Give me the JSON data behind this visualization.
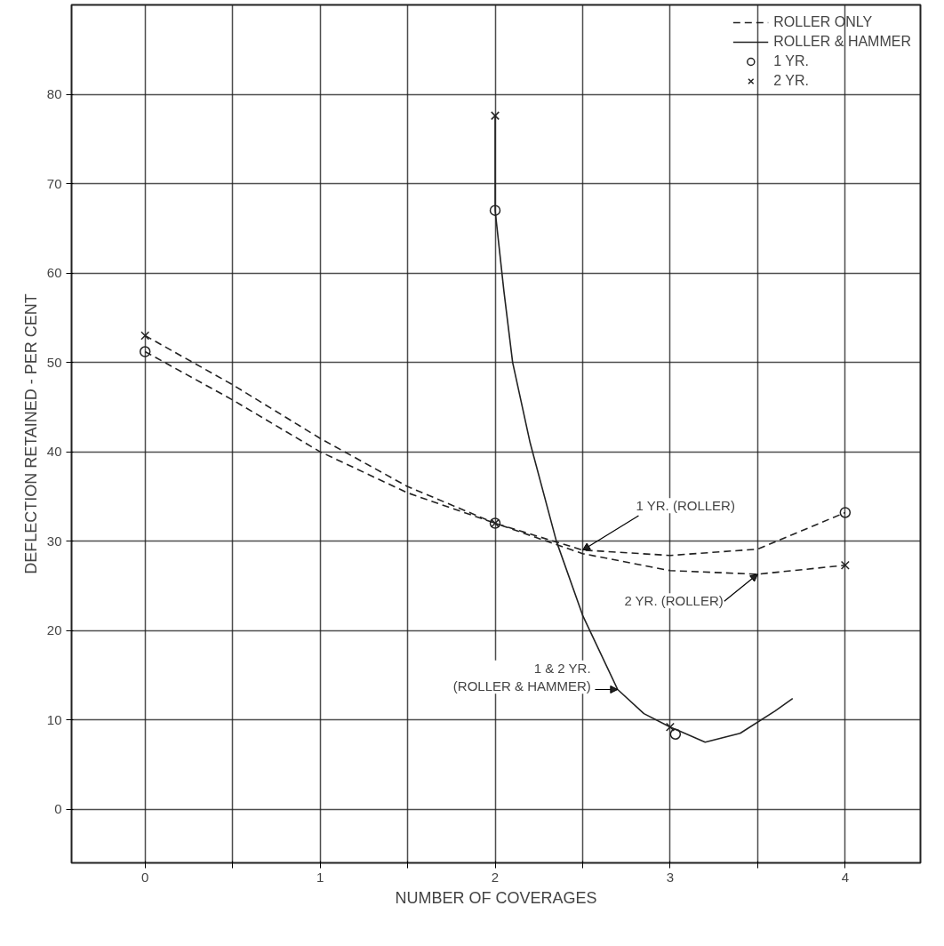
{
  "chart_data": {
    "type": "line",
    "xlabel": "NUMBER OF COVERAGES",
    "ylabel": "DEFLECTION RETAINED - PER CENT",
    "xlim": [
      -0.42,
      4.43
    ],
    "ylim": [
      -6,
      90
    ],
    "xticks": [
      0,
      {
        "value": 0.5,
        "label": null
      },
      1,
      {
        "value": 1.5,
        "label": null
      },
      2,
      {
        "value": 2.5,
        "label": null
      },
      3,
      {
        "value": 3.5,
        "label": null
      },
      4
    ],
    "yticks": [
      0,
      10,
      20,
      30,
      40,
      50,
      60,
      70,
      80
    ],
    "grid": true,
    "legend": "top right",
    "series": [
      {
        "name": "ROLLER ONLY",
        "line_style": "dashed",
        "color": "#222222",
        "x": [
          0,
          0.5,
          1,
          1.5,
          2,
          2.5,
          3,
          3.5,
          4
        ],
        "values": [
          51.2,
          45.8,
          40,
          35.4,
          32,
          29,
          28.4,
          29.1,
          33.2
        ]
      },
      {
        "line_style": "dashed",
        "color": "#222222",
        "x": [
          0,
          0.5,
          1,
          1.5,
          2,
          2.5,
          3,
          3.5,
          4
        ],
        "values": [
          53,
          47.5,
          41.5,
          36.1,
          32,
          28.6,
          26.7,
          26.3,
          27.3
        ]
      },
      {
        "name": "ROLLER & HAMMER",
        "line_style": "solid",
        "color": "#222222",
        "x": [
          2,
          2,
          2.05,
          2.1,
          2.2,
          2.35,
          2.5,
          2.7,
          2.85,
          3,
          3.2,
          3.4,
          3.6,
          3.7
        ],
        "values": [
          77.6,
          67,
          58,
          50,
          41,
          30,
          21.7,
          13.4,
          10.7,
          9.2,
          7.5,
          8.5,
          11,
          12.4
        ]
      },
      {
        "name": "1 YR.",
        "type": "scatter",
        "marker": "circle",
        "color": "#222222",
        "x": [
          0,
          2,
          4,
          2,
          3.03
        ],
        "values": [
          51.2,
          32,
          33.2,
          67,
          8.4
        ]
      },
      {
        "name": "2 YR.",
        "type": "scatter",
        "marker": "cross",
        "color": "#222222",
        "x": [
          0,
          2,
          4,
          2,
          3
        ],
        "values": [
          53,
          32,
          27.3,
          77.6,
          9.2
        ]
      }
    ],
    "annotations": [
      {
        "text": "1 YR. (ROLLER)",
        "x": 2.5,
        "y": 29
      },
      {
        "text": "2 YR. (ROLLER)",
        "x": 3.5,
        "y": 26.3
      },
      {
        "text": "1 & 2 YR.\n(ROLLER & HAMMER)",
        "x": 2.7,
        "y": 13.4
      }
    ]
  }
}
